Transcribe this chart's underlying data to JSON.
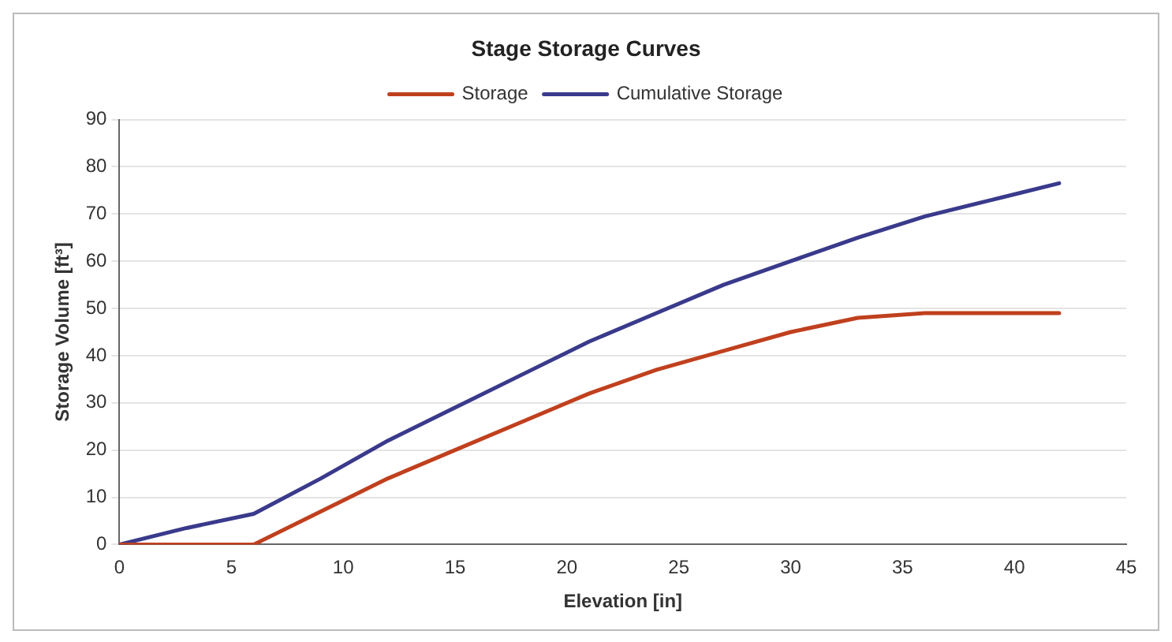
{
  "chart_data": {
    "type": "line",
    "title": "Stage Storage Curves",
    "xlabel": "Elevation [in]",
    "ylabel": "Storage Volume [ft³]",
    "xlim": [
      0,
      45
    ],
    "xticks": [
      0,
      5,
      10,
      15,
      20,
      25,
      30,
      35,
      40,
      45
    ],
    "ylim": [
      0,
      90
    ],
    "yticks": [
      0,
      10,
      20,
      30,
      40,
      50,
      60,
      70,
      80,
      90
    ],
    "grid": "y",
    "legend": "top",
    "marker": "none",
    "line_style": "solid",
    "series": [
      {
        "name": "Storage",
        "color": "#c0401e",
        "x": [
          0,
          6,
          9,
          12,
          15,
          18,
          21,
          24,
          27,
          30,
          33,
          36,
          42
        ],
        "values": [
          0,
          0,
          7,
          14,
          20,
          26,
          32,
          37,
          41,
          45,
          48,
          49,
          49
        ]
      },
      {
        "name": "Cumulative Storage",
        "color": "#3a3a8c",
        "x": [
          0,
          3,
          6,
          9,
          12,
          15,
          18,
          21,
          24,
          27,
          30,
          33,
          36,
          39,
          42
        ],
        "values": [
          0,
          3.5,
          6.5,
          14,
          22,
          29,
          36,
          43,
          49,
          55,
          60,
          65,
          69.5,
          73,
          76.5
        ]
      }
    ]
  }
}
